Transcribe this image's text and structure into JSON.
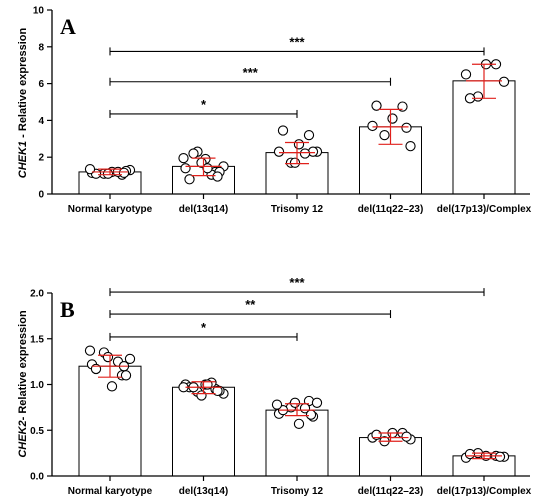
{
  "colors": {
    "axis": "#000000",
    "bar_fill": "#ffffff",
    "point": "#ffffff",
    "error": "#e0201b"
  },
  "chart_data": [
    {
      "type": "bar",
      "panel_label": "A",
      "ylabel_gene": "CHEK1",
      "ylabel_rest": " - Relative expression",
      "categories": [
        "Normal karyotype",
        "del(13q14)",
        "Trisomy 12",
        "del(11q22–23)",
        "del(17p13)/Complex"
      ],
      "values": [
        1.2,
        1.5,
        2.25,
        3.65,
        6.15
      ],
      "error": [
        [
          1.05,
          1.35
        ],
        [
          1.0,
          1.95
        ],
        [
          1.65,
          2.8
        ],
        [
          2.7,
          4.6
        ],
        [
          5.2,
          7.05
        ]
      ],
      "points": [
        [
          1.15,
          1.05,
          1.1,
          1.3,
          1.2,
          1.1,
          1.25,
          1.1,
          1.2,
          1.35,
          1.15
        ],
        [
          1.4,
          1.2,
          2.3,
          1.5,
          1.9,
          0.8,
          1.2,
          1.7,
          1.05,
          1.95,
          0.95,
          2.2,
          1.4
        ],
        [
          2.3,
          3.2,
          1.7,
          2.3,
          2.7,
          3.45,
          2.3,
          1.7,
          2.2
        ],
        [
          3.7,
          4.75,
          3.2,
          2.6,
          4.1,
          4.8,
          3.6
        ],
        [
          6.5,
          7.05,
          5.3,
          6.1,
          7.05,
          5.2
        ]
      ],
      "ylim": [
        0,
        10
      ],
      "yticks": [
        "0",
        "2",
        "4",
        "6",
        "8",
        "10"
      ],
      "comparisons": [
        {
          "from": 0,
          "to": 2,
          "y": 4.35,
          "label": "*"
        },
        {
          "from": 0,
          "to": 3,
          "y": 6.1,
          "label": "***"
        },
        {
          "from": 0,
          "to": 4,
          "y": 7.75,
          "label": "***"
        }
      ]
    },
    {
      "type": "bar",
      "panel_label": "B",
      "ylabel_gene": "CHEK2",
      "ylabel_rest": "- Relative expression",
      "categories": [
        "Normal karyotype",
        "del(13q14)",
        "Trisomy 12",
        "del(11q22–23)",
        "del(17p13)/Complex"
      ],
      "values": [
        1.2,
        0.97,
        0.72,
        0.42,
        0.22
      ],
      "error": [
        [
          1.08,
          1.32
        ],
        [
          0.9,
          1.03
        ],
        [
          0.66,
          0.79
        ],
        [
          0.38,
          0.47
        ],
        [
          0.19,
          0.25
        ]
      ],
      "points": [
        [
          1.22,
          1.1,
          1.35,
          1.28,
          0.98,
          1.17,
          1.1,
          1.3,
          1.25,
          1.37,
          1.2
        ],
        [
          1.0,
          0.95,
          0.92,
          0.9,
          1.0,
          0.97,
          0.93,
          0.88,
          1.02,
          0.97,
          0.93,
          0.97,
          1.0
        ],
        [
          0.68,
          0.82,
          0.75,
          0.8,
          0.57,
          0.72,
          0.65,
          0.8,
          0.74,
          0.78,
          0.67
        ],
        [
          0.42,
          0.47,
          0.38,
          0.4,
          0.47,
          0.45,
          0.43
        ],
        [
          0.2,
          0.22,
          0.25,
          0.21,
          0.22,
          0.24,
          0.21
        ]
      ],
      "ylim": [
        0,
        2.0
      ],
      "yticks": [
        "0.0",
        "0.5",
        "1.0",
        "1.5",
        "2.0"
      ],
      "comparisons": [
        {
          "from": 0,
          "to": 2,
          "y": 1.52,
          "label": "*"
        },
        {
          "from": 0,
          "to": 3,
          "y": 1.77,
          "label": "**"
        },
        {
          "from": 0,
          "to": 4,
          "y": 2.01,
          "label": "***"
        }
      ]
    }
  ]
}
